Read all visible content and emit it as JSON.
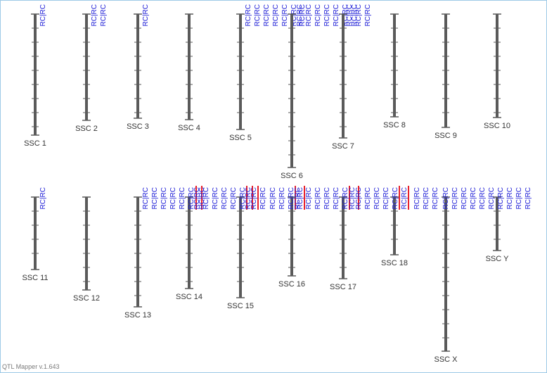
{
  "app": {
    "version": "QTL Mapper v.1.643"
  },
  "colors": {
    "chromosome": "#5a5a5a",
    "qtl_label": "#1a1ad6",
    "qtl_highlight": "#e8202a",
    "chromosome_label": "#333333",
    "border": "#9ec9e6"
  },
  "chromosomes": [
    {
      "name": "SSC 1",
      "qtls": [
        "RC|RC"
      ]
    },
    {
      "name": "SSC 2",
      "qtls": [
        "RC|RC",
        "RC|RC"
      ]
    },
    {
      "name": "SSC 3",
      "qtls": [
        "RC|RC"
      ]
    },
    {
      "name": "SSC 4",
      "qtls": []
    },
    {
      "name": "SSC 5",
      "qtls": [
        "RC|RC",
        "RC|RC",
        "RC|RC",
        "RC|RC",
        "RC|RC",
        "RC|RC"
      ]
    },
    {
      "name": "SSC 6",
      "qtls": [
        "RC|RC",
        "RC|RC",
        "RC|RC",
        "RC|RC",
        "RC|RC",
        "RC|RC",
        "RC|RC",
        "RC|RC"
      ]
    },
    {
      "name": "SSC 7",
      "qtls": [
        "RC|RC",
        "RC|RC",
        "RC|RC"
      ]
    },
    {
      "name": "SSC 8",
      "qtls": []
    },
    {
      "name": "SSC 9",
      "qtls": []
    },
    {
      "name": "SSC 10",
      "qtls": []
    },
    {
      "name": "SSC 11",
      "qtls": [
        "RC|RC"
      ]
    },
    {
      "name": "SSC 12",
      "qtls": []
    },
    {
      "name": "SSC 13",
      "qtls": [
        "RC|RC",
        "RC|RC",
        "RC|RC",
        "RC|RC",
        "RC|RC"
      ]
    },
    {
      "name": "SSC 14",
      "qtls": [
        "RC|RC",
        "RC|RC",
        "RC|RC",
        "RC|RC",
        "RC|RC"
      ]
    },
    {
      "name": "SSC 15",
      "qtls": [
        "RC|RC",
        "RC|RC",
        "RC|RC",
        "RC|RC",
        "RC|RC",
        "RC|RC"
      ]
    },
    {
      "name": "SSC 16",
      "qtls": [
        "RC|RC",
        "RC|RC",
        "RC|RC",
        "RC|RC",
        "RC|RC",
        "RC|RC"
      ]
    },
    {
      "name": "SSC 17",
      "qtls": [
        "RC|RC",
        "RC|RC",
        "RC|RC",
        "RC|RC",
        "RC|RC",
        "RC|RC"
      ]
    },
    {
      "name": "SSC 18",
      "qtls": [
        "RC|RC",
        "RC|RC",
        "RC|RC",
        "RC|RC",
        "RC|RC"
      ]
    },
    {
      "name": "SSC X",
      "qtls": [
        "RC|RC",
        "RC|RC",
        "RC|RC",
        "RC|RC",
        "RC|RC",
        "RC|RC",
        "RC|RC"
      ]
    },
    {
      "name": "SSC Y",
      "qtls": [
        "RC|RC",
        "RC|RC",
        "RC|RC",
        "RC|RC",
        "RC|RC",
        "RC|RC"
      ]
    }
  ]
}
